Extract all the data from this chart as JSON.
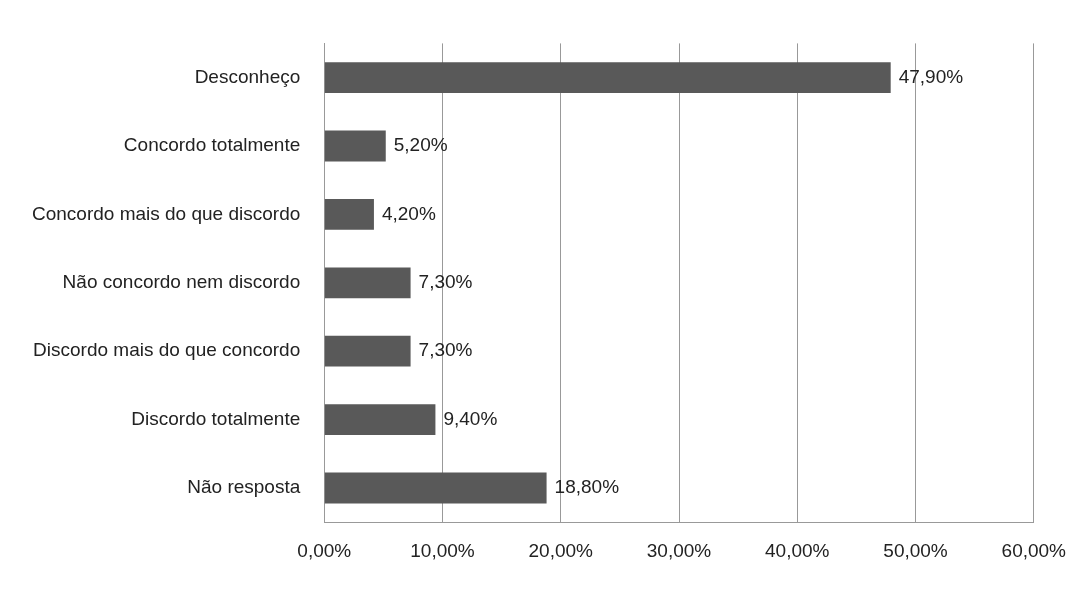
{
  "chart_data": {
    "type": "bar",
    "orientation": "horizontal",
    "categories": [
      "Desconheço",
      "Concordo totalmente",
      "Concordo mais do que discordo",
      "Não concordo nem discordo",
      "Discordo mais do que concordo",
      "Discordo totalmente",
      "Não resposta"
    ],
    "values": [
      47.9,
      5.2,
      4.2,
      7.3,
      7.3,
      9.4,
      18.8
    ],
    "value_labels": [
      "47,90%",
      "5,20%",
      "4,20%",
      "7,30%",
      "7,30%",
      "9,40%",
      "18,80%"
    ],
    "color": "#595959",
    "xlim": [
      0,
      60
    ],
    "xticks": [
      {
        "value": 0,
        "label": "0,00%"
      },
      {
        "value": 10,
        "label": "10,00%"
      },
      {
        "value": 20,
        "label": "20,00%"
      },
      {
        "value": 30,
        "label": "30,00%"
      },
      {
        "value": 40,
        "label": "40,00%"
      },
      {
        "value": 50,
        "label": "50,00%"
      },
      {
        "value": 60,
        "label": "60,00%"
      }
    ],
    "grid": "x"
  }
}
